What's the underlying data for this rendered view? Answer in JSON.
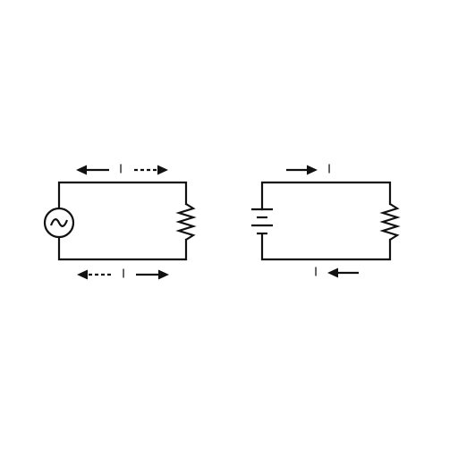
{
  "diagrams": [
    {
      "source": "ac",
      "components": [
        "ac-source-icon",
        "resistor-icon"
      ],
      "current_label": "I",
      "arrows": [
        {
          "wire": "top",
          "direction": "left",
          "style": "solid"
        },
        {
          "wire": "top",
          "direction": "right",
          "style": "dashed"
        },
        {
          "wire": "bottom",
          "direction": "left",
          "style": "dashed"
        },
        {
          "wire": "bottom",
          "direction": "right",
          "style": "solid"
        }
      ]
    },
    {
      "source": "dc",
      "components": [
        "battery-icon",
        "resistor-icon"
      ],
      "current_label": "I",
      "arrows": [
        {
          "wire": "top",
          "direction": "right",
          "style": "solid"
        },
        {
          "wire": "bottom",
          "direction": "left",
          "style": "solid"
        }
      ]
    }
  ]
}
